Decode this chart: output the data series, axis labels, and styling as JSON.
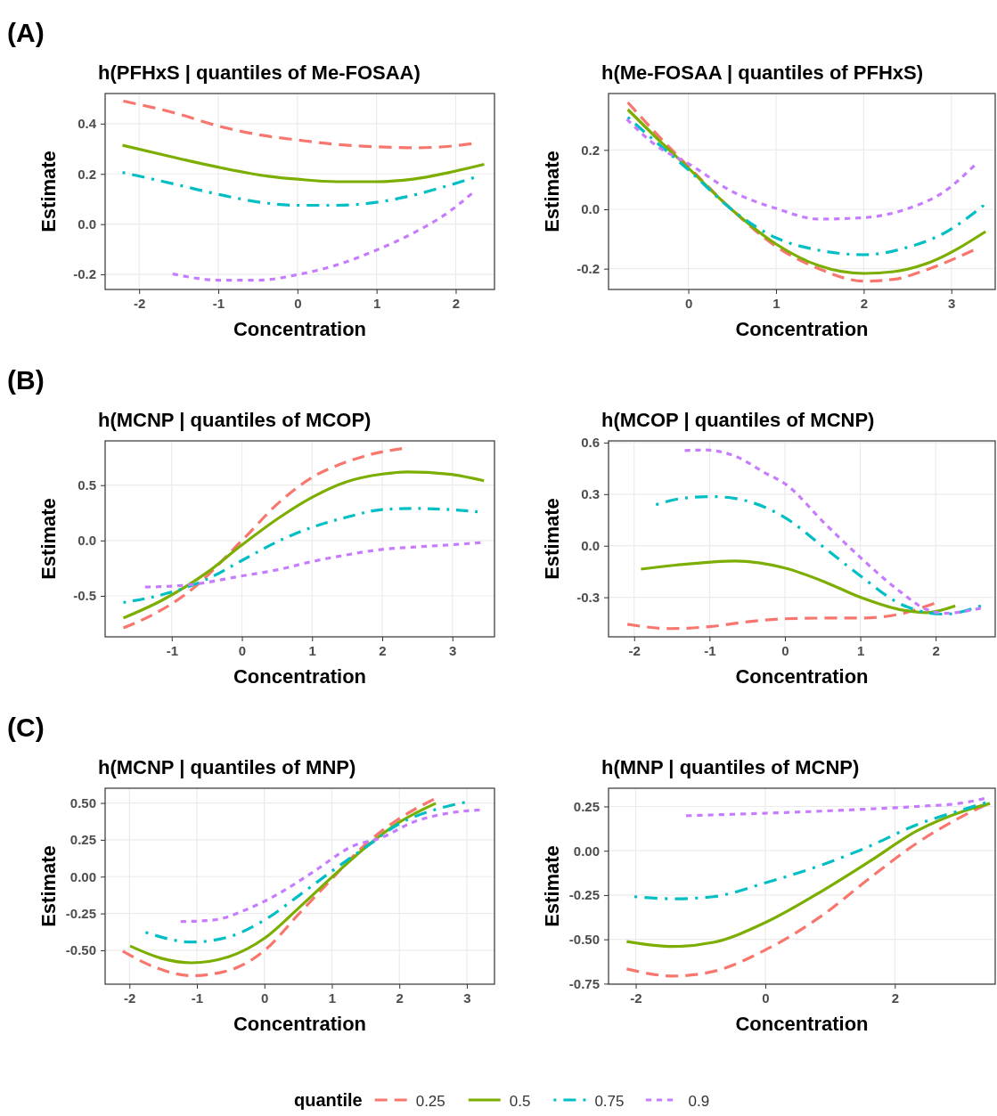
{
  "chart_data": [
    {
      "type": "line",
      "title": "h(PFHxS | quantiles of Me-FOSAA)",
      "xlabel": "Concentration",
      "ylabel": "Estimate",
      "annotations": [
        "(A)"
      ],
      "xlim": [
        -2.43,
        2.49
      ],
      "xticks": [
        -2,
        -1,
        0,
        1,
        2
      ],
      "ylim": [
        -0.26,
        0.52
      ],
      "yticks": [
        -0.2,
        {
          "value": 0,
          "label": "0.0"
        },
        0.2,
        0.4
      ],
      "grid": true,
      "x": [
        -2.2,
        -1.52,
        -0.99,
        -0.37,
        0,
        0.5,
        1,
        1.46,
        1.92,
        2.2
      ],
      "series": [
        {
          "color": "#f8766d",
          "line_style": "dashed",
          "values": [
            0.49,
            0.44,
            0.39,
            0.35,
            0.335,
            0.317,
            0.308,
            0.304,
            0.31,
            0.32
          ]
        },
        {
          "color": "#7cae00",
          "line_style": "solid",
          "x": [
            -2.21,
            -1.52,
            -0.99,
            -0.37,
            0,
            0.5,
            1,
            1.46,
            1.92,
            2.36
          ],
          "values": [
            0.314,
            0.263,
            0.226,
            0.191,
            0.179,
            0.169,
            0.169,
            0.179,
            0.206,
            0.238
          ]
        },
        {
          "color": "#00bfc4",
          "line_style": "dashdot",
          "x": [
            -2.21,
            -1.52,
            -0.99,
            -0.37,
            0,
            0.5,
            1,
            1.46,
            1.92,
            2.23
          ],
          "values": [
            0.206,
            0.157,
            0.118,
            0.083,
            0.075,
            0.075,
            0.087,
            0.115,
            0.155,
            0.185
          ]
        },
        {
          "color": "#c77cff",
          "line_style": "dotted",
          "x": [
            -1.56,
            -0.99,
            -0.49,
            0,
            0.5,
            1,
            1.46,
            1.92,
            2.19
          ],
          "values": [
            -0.199,
            -0.223,
            -0.223,
            -0.201,
            -0.162,
            -0.103,
            -0.036,
            0.05,
            0.118
          ]
        }
      ]
    },
    {
      "type": "line",
      "title": "h(Me-FOSAA | quantiles of PFHxS)",
      "xlabel": "Concentration",
      "ylabel": "Estimate",
      "xlim": [
        -0.91,
        3.5
      ],
      "xticks": [
        0,
        1,
        2,
        3
      ],
      "ylim": [
        -0.27,
        0.39
      ],
      "yticks": [
        -0.2,
        {
          "value": 0,
          "label": "0.0"
        },
        0.2
      ],
      "grid": true,
      "x": [
        -0.69,
        -0.35,
        0,
        0.5,
        1,
        1.49,
        2,
        2.34,
        2.75,
        3.25
      ],
      "series": [
        {
          "color": "#f8766d",
          "line_style": "dashed",
          "values": [
            0.36,
            0.25,
            0.144,
            -0.002,
            -0.125,
            -0.2,
            -0.242,
            -0.236,
            -0.2,
            -0.138
          ]
        },
        {
          "color": "#7cae00",
          "line_style": "solid",
          "x": [
            -0.69,
            -0.35,
            0,
            0.5,
            1,
            1.49,
            2,
            2.34,
            2.75,
            3.39
          ],
          "values": [
            0.336,
            0.237,
            0.139,
            -0.002,
            -0.117,
            -0.19,
            -0.216,
            -0.21,
            -0.179,
            -0.075
          ]
        },
        {
          "color": "#00bfc4",
          "line_style": "dashdot",
          "x": [
            -0.69,
            -0.35,
            0,
            0.5,
            1,
            1.49,
            2,
            2.51,
            2.92,
            3.37
          ],
          "values": [
            0.31,
            0.222,
            0.133,
            -0.002,
            -0.096,
            -0.138,
            -0.153,
            -0.127,
            -0.08,
            0.014
          ]
        },
        {
          "color": "#c77cff",
          "line_style": "dotted",
          "x": [
            -0.69,
            -0.35,
            0,
            0.5,
            1,
            1.49,
            2,
            2.51,
            2.92,
            3.25
          ],
          "values": [
            0.3,
            0.211,
            0.154,
            0.06,
            0.003,
            -0.033,
            -0.028,
            0.003,
            0.06,
            0.144
          ]
        }
      ]
    },
    {
      "type": "line",
      "title": "h(MCNP | quantiles of MCOP)",
      "xlabel": "Concentration",
      "ylabel": "Estimate",
      "annotations": [
        "(B)"
      ],
      "xlim": [
        -1.95,
        3.6
      ],
      "xticks": [
        -1,
        0,
        1,
        2,
        3
      ],
      "ylim": [
        -0.87,
        0.9
      ],
      "yticks": [
        -0.5,
        {
          "value": 0,
          "label": "0.0"
        },
        0.5
      ],
      "grid": true,
      "x": [
        -1.69,
        -1.27,
        -0.75,
        0,
        0.54,
        1,
        1.49,
        1.92,
        2.28
      ],
      "series": [
        {
          "color": "#f8766d",
          "line_style": "dashed",
          "values": [
            -0.79,
            -0.67,
            -0.46,
            0,
            0.35,
            0.57,
            0.71,
            0.79,
            0.83
          ]
        },
        {
          "color": "#7cae00",
          "line_style": "solid",
          "x": [
            -1.69,
            -1.14,
            -0.5,
            0,
            0.54,
            1,
            1.49,
            2,
            2.35,
            2.95,
            3.45
          ],
          "values": [
            -0.7,
            -0.54,
            -0.29,
            -0.04,
            0.21,
            0.39,
            0.53,
            0.6,
            0.62,
            0.6,
            0.54
          ]
        },
        {
          "color": "#00bfc4",
          "line_style": "dashdot",
          "x": [
            -1.69,
            -1.14,
            -0.5,
            0,
            0.54,
            1,
            1.49,
            2,
            2.43,
            2.95,
            3.36
          ],
          "values": [
            -0.56,
            -0.49,
            -0.35,
            -0.18,
            0,
            0.12,
            0.21,
            0.28,
            0.29,
            0.28,
            0.26
          ]
        },
        {
          "color": "#c77cff",
          "line_style": "dotted",
          "x": [
            -1.36,
            -0.75,
            0,
            0.54,
            1,
            1.49,
            2,
            2.43,
            2.95,
            3.38
          ],
          "values": [
            -0.42,
            -0.4,
            -0.32,
            -0.26,
            -0.19,
            -0.13,
            -0.08,
            -0.06,
            -0.04,
            -0.02
          ]
        }
      ]
    },
    {
      "type": "line",
      "title": "h(MCOP | quantiles of MCNP)",
      "xlabel": "Concentration",
      "ylabel": "Estimate",
      "xlim": [
        -2.34,
        2.79
      ],
      "xticks": [
        -2,
        -1,
        0,
        1,
        2
      ],
      "ylim": [
        -0.53,
        0.61
      ],
      "yticks": [
        {
          "value": -0.3,
          "label": "-0.3"
        },
        {
          "value": 0,
          "label": "0.0"
        },
        0.3,
        0.6
      ],
      "grid": true,
      "x": [
        -2.09,
        -1.53,
        -0.98,
        -0.5,
        0,
        0.53,
        1,
        1.52,
        1.98
      ],
      "series": [
        {
          "color": "#f8766d",
          "line_style": "dashed",
          "values": [
            -0.457,
            -0.482,
            -0.47,
            -0.443,
            -0.425,
            -0.421,
            -0.421,
            -0.398,
            -0.336
          ]
        },
        {
          "color": "#7cae00",
          "line_style": "solid",
          "x": [
            -1.91,
            -1.45,
            -0.98,
            -0.66,
            0,
            0.53,
            1,
            1.52,
            1.88,
            2.26
          ],
          "values": [
            -0.136,
            -0.113,
            -0.095,
            -0.089,
            -0.13,
            -0.211,
            -0.3,
            -0.371,
            -0.389,
            -0.35
          ]
        },
        {
          "color": "#00bfc4",
          "line_style": "dashdot",
          "x": [
            -1.71,
            -1.37,
            -0.98,
            -0.66,
            0,
            0.53,
            1,
            1.52,
            1.88,
            2.12,
            2.6
          ],
          "values": [
            0.239,
            0.275,
            0.286,
            0.275,
            0.164,
            -0.014,
            -0.175,
            -0.336,
            -0.389,
            -0.398,
            -0.35
          ]
        },
        {
          "color": "#c77cff",
          "line_style": "dotted",
          "x": [
            -1.31,
            -1.06,
            -0.66,
            -0.26,
            0,
            0.53,
            1,
            1.52,
            1.88,
            2.12,
            2.58
          ],
          "values": [
            0.554,
            0.557,
            0.521,
            0.423,
            0.361,
            0.129,
            -0.068,
            -0.264,
            -0.371,
            -0.393,
            -0.365
          ]
        }
      ]
    },
    {
      "type": "line",
      "title": "h(MCNP | quantiles of MNP)",
      "xlabel": "Concentration",
      "ylabel": "Estimate",
      "annotations": [
        "(C)"
      ],
      "xlim": [
        -2.36,
        3.41
      ],
      "xticks": [
        -2,
        -1,
        0,
        1,
        2,
        3
      ],
      "ylim": [
        -0.73,
        0.6
      ],
      "yticks": [
        {
          "value": -0.5,
          "label": "-0.50"
        },
        {
          "value": -0.25,
          "label": "-0.25"
        },
        {
          "value": 0,
          "label": "0.00"
        },
        {
          "value": 0.25,
          "label": "0.25"
        },
        {
          "value": 0.5,
          "label": "0.50"
        }
      ],
      "grid": true,
      "x": [
        -2.1,
        -1.67,
        -1.08,
        -0.53,
        0,
        0.51,
        1,
        1.51,
        2,
        2.51
      ],
      "series": [
        {
          "color": "#f8766d",
          "line_style": "dashed",
          "values": [
            -0.506,
            -0.606,
            -0.672,
            -0.637,
            -0.502,
            -0.253,
            -0.015,
            0.224,
            0.394,
            0.525
          ]
        },
        {
          "color": "#7cae00",
          "line_style": "solid",
          "x": [
            -1.99,
            -1.53,
            -1.08,
            -0.53,
            0,
            0.51,
            1,
            1.51,
            2,
            2.54
          ],
          "values": [
            -0.471,
            -0.554,
            -0.585,
            -0.544,
            -0.419,
            -0.212,
            -0.004,
            0.203,
            0.369,
            0.498
          ]
        },
        {
          "color": "#00bfc4",
          "line_style": "dashdot",
          "x": [
            -1.76,
            -1.08,
            -0.53,
            0,
            0.51,
            1,
            1.51,
            2,
            2.51,
            2.97
          ],
          "values": [
            -0.378,
            -0.444,
            -0.409,
            -0.295,
            -0.129,
            0.037,
            0.203,
            0.359,
            0.452,
            0.504
          ]
        },
        {
          "color": "#c77cff",
          "line_style": "dotted",
          "x": [
            -1.22,
            -0.76,
            -0.26,
            0.24,
            0.74,
            1.29,
            1.74,
            2.2,
            2.74,
            3.17
          ],
          "values": [
            -0.305,
            -0.295,
            -0.222,
            -0.108,
            0.037,
            0.203,
            0.266,
            0.369,
            0.432,
            0.452
          ]
        }
      ]
    },
    {
      "type": "line",
      "title": "h(MNP | quantiles of MCNP)",
      "xlabel": "Concentration",
      "ylabel": "Estimate",
      "legend_title": "quantile",
      "legend": "bottom",
      "xlim": [
        -2.42,
        3.55
      ],
      "xticks": [
        -2,
        0,
        2
      ],
      "ylim": [
        -0.753,
        0.353
      ],
      "yticks": [
        {
          "value": -0.75,
          "label": "-0.75"
        },
        {
          "value": -0.5,
          "label": "-0.50"
        },
        {
          "value": -0.25,
          "label": "-0.25"
        },
        {
          "value": 0,
          "label": "0.00"
        },
        {
          "value": 0.25,
          "label": "0.25"
        }
      ],
      "grid": true,
      "x": [
        -2.14,
        -1.42,
        -0.8,
        0,
        0.89,
        1.61,
        2.34,
        3.06,
        3.4
      ],
      "series": [
        {
          "name": "0.25",
          "color": "#f8766d",
          "line_style": "dashed",
          "values": [
            -0.667,
            -0.707,
            -0.681,
            -0.56,
            -0.362,
            -0.155,
            0.043,
            0.198,
            0.259
          ]
        },
        {
          "name": "0.5",
          "color": "#7cae00",
          "line_style": "solid",
          "x": [
            -2.14,
            -1.42,
            -0.8,
            0,
            0.89,
            1.61,
            2.34,
            3.06,
            3.47
          ],
          "values": [
            -0.512,
            -0.54,
            -0.517,
            -0.405,
            -0.224,
            -0.06,
            0.112,
            0.224,
            0.267
          ]
        },
        {
          "name": "0.75",
          "color": "#00bfc4",
          "line_style": "dashdot",
          "x": [
            -2.02,
            -1.42,
            -0.8,
            0,
            0.89,
            1.61,
            2.34,
            3.06,
            3.4
          ],
          "values": [
            -0.259,
            -0.271,
            -0.259,
            -0.181,
            -0.078,
            0.026,
            0.147,
            0.233,
            0.271
          ]
        },
        {
          "name": "0.9",
          "color": "#c77cff",
          "line_style": "dotted",
          "x": [
            -1.2,
            0,
            0.89,
            1.61,
            2.34,
            3.06,
            3.36
          ],
          "values": [
            0.198,
            0.212,
            0.224,
            0.236,
            0.25,
            0.271,
            0.293
          ]
        }
      ]
    }
  ]
}
